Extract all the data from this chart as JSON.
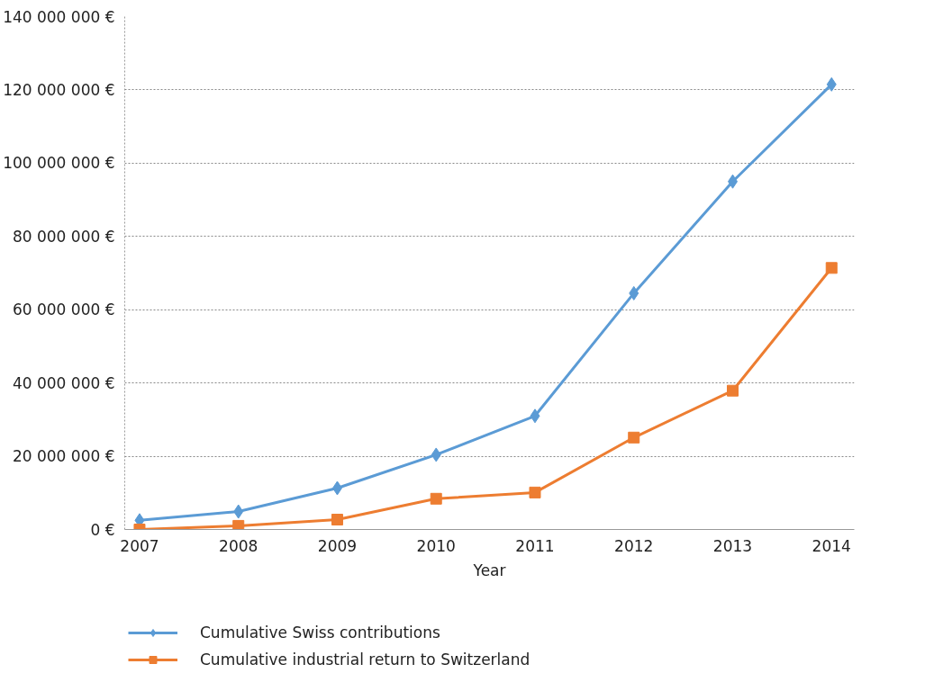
{
  "chart_data": {
    "type": "line",
    "xlabel": "Year",
    "categories": [
      "2007",
      "2008",
      "2009",
      "2010",
      "2011",
      "2012",
      "2013",
      "2014"
    ],
    "series": [
      {
        "name": "Cumulative Swiss contributions",
        "color": "#5b9bd5",
        "marker": "diamond",
        "values": [
          2500000,
          4900000,
          11300000,
          20400000,
          31000000,
          64500000,
          95000000,
          121500000
        ]
      },
      {
        "name": "Cumulative industrial return to Switzerland",
        "color": "#ed7d31",
        "marker": "square",
        "values": [
          0,
          1000000,
          2700000,
          8400000,
          10100000,
          25100000,
          37900000,
          71400000
        ]
      }
    ],
    "ylim": [
      0,
      140000000
    ],
    "yticks": [
      {
        "value": 0,
        "label": "0 €"
      },
      {
        "value": 20000000,
        "label": "20 000 000 €"
      },
      {
        "value": 40000000,
        "label": "40 000 000 €"
      },
      {
        "value": 60000000,
        "label": "60 000 000 €"
      },
      {
        "value": 80000000,
        "label": "80 000 000 €"
      },
      {
        "value": 100000000,
        "label": "100 000 000 €"
      },
      {
        "value": 120000000,
        "label": "120 000 000 €"
      },
      {
        "value": 140000000,
        "label": "140 000 000 €"
      }
    ],
    "grid": "y",
    "legend": "bottom",
    "line_style": "solid"
  }
}
